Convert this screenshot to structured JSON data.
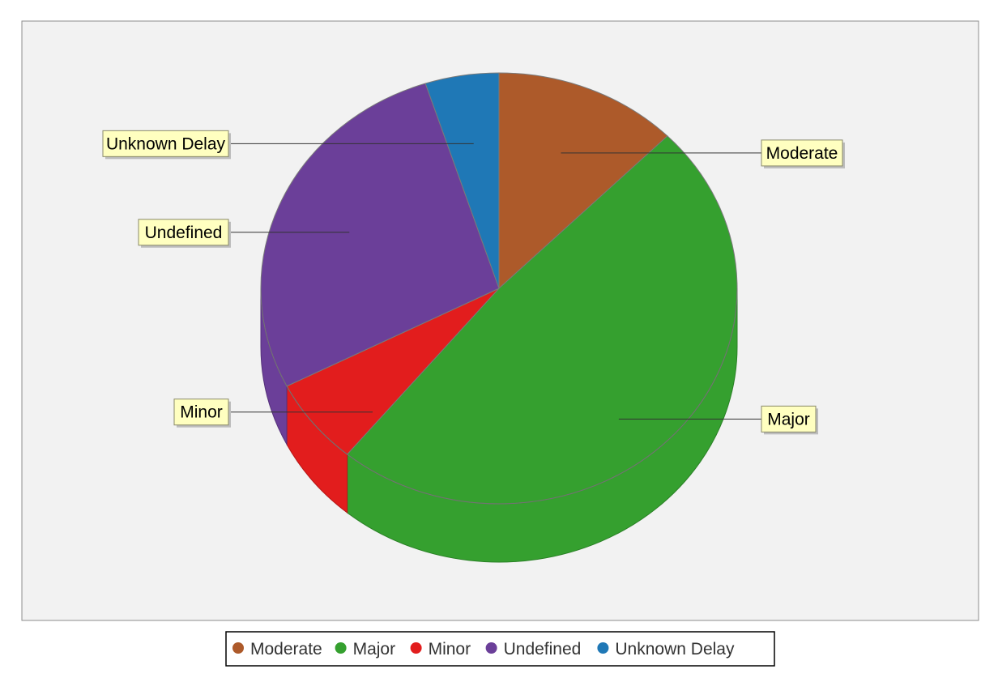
{
  "chart_data": {
    "type": "pie",
    "title": "",
    "style": "3d",
    "legend_position": "bottom",
    "series": [
      {
        "name": "",
        "slices": [
          {
            "label": "Moderate",
            "value": 12.5,
            "color": "#ad5a2a"
          },
          {
            "label": "Major",
            "value": 48.5,
            "color": "#35a02f"
          },
          {
            "label": "Minor",
            "value": 6.5,
            "color": "#e21d1d"
          },
          {
            "label": "Undefined",
            "value": 27.5,
            "color": "#6b3f99"
          },
          {
            "label": "Unknown Delay",
            "value": 5.0,
            "color": "#1f78b6"
          }
        ]
      }
    ],
    "plot_background": "#f2f2f2"
  }
}
